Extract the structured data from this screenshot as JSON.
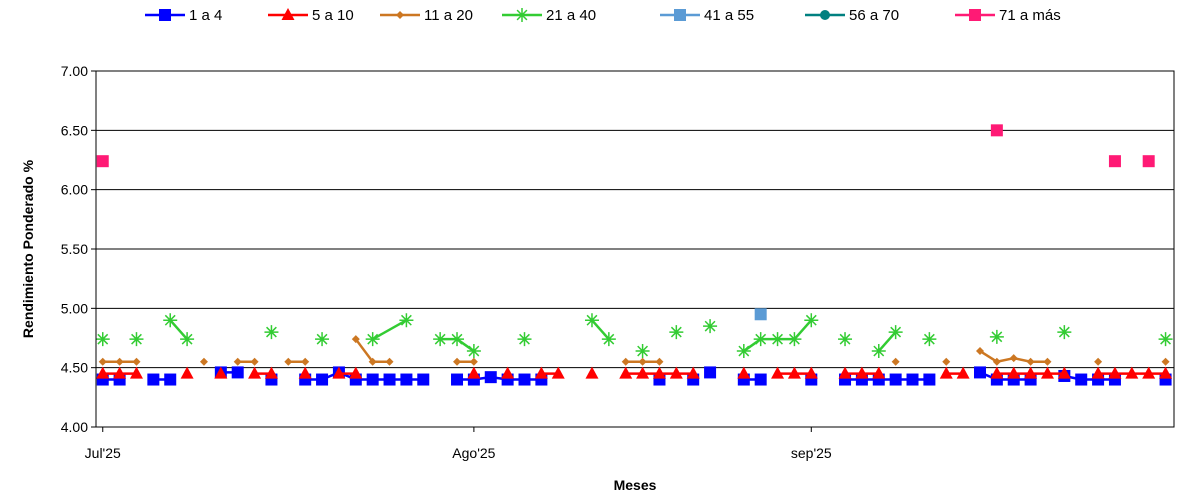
{
  "chart_data": {
    "type": "line",
    "xlabel": "Meses",
    "ylabel": "Rendimiento Ponderado %",
    "ylim": [
      4.0,
      7.0
    ],
    "yticks": [
      "4.00",
      "4.50",
      "5.00",
      "5.50",
      "6.00",
      "6.50",
      "7.00"
    ],
    "xtick_labels": [
      {
        "x": 0,
        "label": "Jul'25"
      },
      {
        "x": 22,
        "label": "Ago'25"
      },
      {
        "x": 42,
        "label": "sep'25"
      }
    ],
    "xlim": [
      -0.4,
      63.5
    ],
    "grid": "horizontal",
    "legend_position": "top",
    "series": [
      {
        "name": "1 a 4",
        "color": "#0000FF",
        "line_color": "#0000FF",
        "marker": "square",
        "points": [
          [
            0,
            4.4
          ],
          [
            1,
            4.4
          ],
          [
            3,
            4.4
          ],
          [
            4,
            4.4
          ],
          [
            7,
            4.46
          ],
          [
            8,
            4.46
          ],
          [
            10,
            4.4
          ],
          [
            12,
            4.4
          ],
          [
            13,
            4.4
          ],
          [
            14,
            4.46
          ],
          [
            15,
            4.4
          ],
          [
            16,
            4.4
          ],
          [
            17,
            4.4
          ],
          [
            18,
            4.4
          ],
          [
            19,
            4.4
          ],
          [
            21,
            4.4
          ],
          [
            22,
            4.4
          ],
          [
            23,
            4.42
          ],
          [
            24,
            4.4
          ],
          [
            25,
            4.4
          ],
          [
            26,
            4.4
          ],
          [
            33,
            4.4
          ],
          [
            35,
            4.4
          ],
          [
            36,
            4.46
          ],
          [
            38,
            4.4
          ],
          [
            39,
            4.4
          ],
          [
            42,
            4.4
          ],
          [
            44,
            4.4
          ],
          [
            45,
            4.4
          ],
          [
            46,
            4.4
          ],
          [
            47,
            4.4
          ],
          [
            48,
            4.4
          ],
          [
            49,
            4.4
          ],
          [
            52,
            4.46
          ],
          [
            53,
            4.4
          ],
          [
            54,
            4.4
          ],
          [
            55,
            4.4
          ],
          [
            57,
            4.43
          ],
          [
            58,
            4.4
          ],
          [
            59,
            4.4
          ],
          [
            60,
            4.4
          ],
          [
            63,
            4.4
          ]
        ],
        "segments": [
          [
            0,
            1
          ],
          [
            3,
            4
          ],
          [
            7,
            8
          ],
          [
            12,
            13
          ],
          [
            13,
            14
          ],
          [
            14,
            15
          ],
          [
            15,
            16
          ],
          [
            16,
            17
          ],
          [
            17,
            18
          ],
          [
            18,
            19
          ],
          [
            21,
            22
          ],
          [
            22,
            23
          ],
          [
            23,
            24
          ],
          [
            24,
            25
          ],
          [
            25,
            26
          ],
          [
            38,
            39
          ],
          [
            44,
            45
          ],
          [
            45,
            46
          ],
          [
            46,
            47
          ],
          [
            47,
            48
          ],
          [
            48,
            49
          ],
          [
            52,
            53
          ],
          [
            53,
            54
          ],
          [
            54,
            55
          ],
          [
            57,
            58
          ],
          [
            58,
            59
          ],
          [
            59,
            60
          ]
        ]
      },
      {
        "name": "5 a 10",
        "color": "#FF0000",
        "line_color": "#FF0000",
        "marker": "triangle",
        "points": [
          [
            0,
            4.45
          ],
          [
            1,
            4.45
          ],
          [
            2,
            4.45
          ],
          [
            5,
            4.45
          ],
          [
            7,
            4.45
          ],
          [
            9,
            4.45
          ],
          [
            10,
            4.45
          ],
          [
            12,
            4.45
          ],
          [
            14,
            4.45
          ],
          [
            15,
            4.45
          ],
          [
            22,
            4.45
          ],
          [
            24,
            4.45
          ],
          [
            26,
            4.45
          ],
          [
            27,
            4.45
          ],
          [
            29,
            4.45
          ],
          [
            31,
            4.45
          ],
          [
            32,
            4.45
          ],
          [
            33,
            4.45
          ],
          [
            34,
            4.45
          ],
          [
            35,
            4.45
          ],
          [
            38,
            4.45
          ],
          [
            40,
            4.45
          ],
          [
            41,
            4.45
          ],
          [
            42,
            4.45
          ],
          [
            44,
            4.45
          ],
          [
            45,
            4.45
          ],
          [
            46,
            4.45
          ],
          [
            50,
            4.45
          ],
          [
            51,
            4.45
          ],
          [
            53,
            4.45
          ],
          [
            54,
            4.45
          ],
          [
            55,
            4.45
          ],
          [
            56,
            4.45
          ],
          [
            57,
            4.45
          ],
          [
            59,
            4.45
          ],
          [
            60,
            4.45
          ],
          [
            61,
            4.45
          ],
          [
            62,
            4.45
          ],
          [
            63,
            4.45
          ]
        ],
        "segments": [
          [
            0,
            1
          ],
          [
            1,
            2
          ],
          [
            9,
            10
          ],
          [
            14,
            15
          ],
          [
            26,
            27
          ],
          [
            31,
            32
          ],
          [
            32,
            33
          ],
          [
            33,
            34
          ],
          [
            34,
            35
          ],
          [
            40,
            41
          ],
          [
            41,
            42
          ],
          [
            44,
            45
          ],
          [
            45,
            46
          ],
          [
            50,
            51
          ],
          [
            53,
            54
          ],
          [
            54,
            55
          ],
          [
            55,
            56
          ],
          [
            56,
            57
          ],
          [
            59,
            60
          ],
          [
            60,
            61
          ],
          [
            61,
            62
          ],
          [
            62,
            63
          ]
        ]
      },
      {
        "name": "11 a 20",
        "color": "#CC7722",
        "line_color": "#CC7722",
        "marker": "diamond",
        "points": [
          [
            0,
            4.55
          ],
          [
            1,
            4.55
          ],
          [
            2,
            4.55
          ],
          [
            6,
            4.55
          ],
          [
            8,
            4.55
          ],
          [
            9,
            4.55
          ],
          [
            11,
            4.55
          ],
          [
            12,
            4.55
          ],
          [
            15,
            4.74
          ],
          [
            16,
            4.55
          ],
          [
            17,
            4.55
          ],
          [
            21,
            4.55
          ],
          [
            22,
            4.55
          ],
          [
            31,
            4.55
          ],
          [
            32,
            4.55
          ],
          [
            33,
            4.55
          ],
          [
            47,
            4.55
          ],
          [
            50,
            4.55
          ],
          [
            52,
            4.64
          ],
          [
            53,
            4.55
          ],
          [
            54,
            4.58
          ],
          [
            55,
            4.55
          ],
          [
            56,
            4.55
          ],
          [
            59,
            4.55
          ],
          [
            63,
            4.55
          ]
        ],
        "segments": [
          [
            0,
            1
          ],
          [
            1,
            2
          ],
          [
            8,
            9
          ],
          [
            11,
            12
          ],
          [
            15,
            16
          ],
          [
            16,
            17
          ],
          [
            21,
            22
          ],
          [
            31,
            32
          ],
          [
            32,
            33
          ],
          [
            52,
            53
          ],
          [
            53,
            54
          ],
          [
            54,
            55
          ],
          [
            55,
            56
          ]
        ]
      },
      {
        "name": "21 a 40",
        "color": "#33CC33",
        "line_color": "#33CC33",
        "marker": "star",
        "points": [
          [
            0,
            4.74
          ],
          [
            2,
            4.74
          ],
          [
            4,
            4.9
          ],
          [
            5,
            4.74
          ],
          [
            10,
            4.8
          ],
          [
            13,
            4.74
          ],
          [
            16,
            4.74
          ],
          [
            18,
            4.9
          ],
          [
            20,
            4.74
          ],
          [
            21,
            4.74
          ],
          [
            22,
            4.64
          ],
          [
            25,
            4.74
          ],
          [
            29,
            4.9
          ],
          [
            30,
            4.74
          ],
          [
            32,
            4.64
          ],
          [
            34,
            4.8
          ],
          [
            36,
            4.85
          ],
          [
            38,
            4.64
          ],
          [
            39,
            4.74
          ],
          [
            40,
            4.74
          ],
          [
            41,
            4.74
          ],
          [
            42,
            4.9
          ],
          [
            44,
            4.74
          ],
          [
            46,
            4.64
          ],
          [
            47,
            4.8
          ],
          [
            49,
            4.74
          ],
          [
            53,
            4.76
          ],
          [
            57,
            4.8
          ],
          [
            63,
            4.74
          ]
        ],
        "segments": [
          [
            4,
            5
          ],
          [
            16,
            18
          ],
          [
            20,
            21
          ],
          [
            21,
            22
          ],
          [
            29,
            30
          ],
          [
            38,
            39
          ],
          [
            39,
            40
          ],
          [
            40,
            41
          ],
          [
            41,
            42
          ],
          [
            46,
            47
          ]
        ]
      },
      {
        "name": "41 a 55",
        "color": "#5B9BD5",
        "line_color": "#5B9BD5",
        "marker": "square",
        "points": [
          [
            39,
            4.95
          ]
        ],
        "segments": []
      },
      {
        "name": "56 a 70",
        "color": "#008080",
        "line_color": "#008080",
        "marker": "circle",
        "points": [],
        "segments": []
      },
      {
        "name": "71 a más",
        "color": "#FF1A75",
        "line_color": "#FF1A75",
        "marker": "square",
        "points": [
          [
            0,
            6.24
          ],
          [
            53,
            6.5
          ],
          [
            60,
            6.24
          ],
          [
            62,
            6.24
          ]
        ],
        "segments": []
      }
    ]
  }
}
